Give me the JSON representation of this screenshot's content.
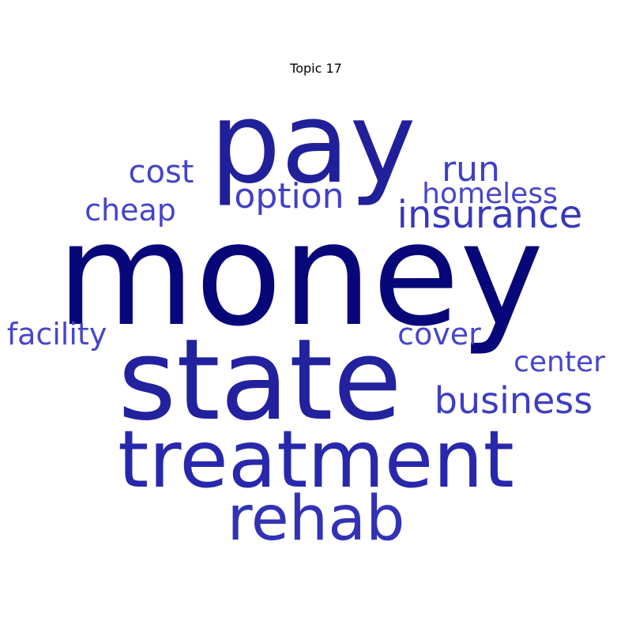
{
  "title": "Topic 17",
  "words": [
    {
      "text": "money",
      "color": "#07077a"
    },
    {
      "text": "pay",
      "color": "#20209a"
    },
    {
      "text": "state",
      "color": "#22229e"
    },
    {
      "text": "treatment",
      "color": "#2828ac"
    },
    {
      "text": "rehab",
      "color": "#3232b6"
    },
    {
      "text": "insurance",
      "color": "#3838bc"
    },
    {
      "text": "business",
      "color": "#3e3ec4"
    },
    {
      "text": "option",
      "color": "#4040c6"
    },
    {
      "text": "run",
      "color": "#4040c6"
    },
    {
      "text": "cost",
      "color": "#4444ca"
    },
    {
      "text": "cheap",
      "color": "#4444ca"
    },
    {
      "text": "homeless",
      "color": "#4646cc"
    },
    {
      "text": "cover",
      "color": "#4646cc"
    },
    {
      "text": "facility",
      "color": "#4646cc"
    },
    {
      "text": "center",
      "color": "#4646cc"
    }
  ]
}
